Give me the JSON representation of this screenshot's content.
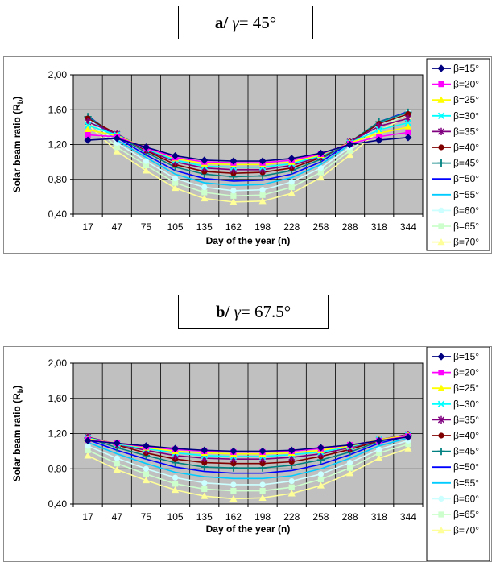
{
  "panels": [
    {
      "letter": "a",
      "slash": "/",
      "gamma_symbol": "γ",
      "equals": "=",
      "gamma_value": "45°"
    },
    {
      "letter": "b",
      "slash": "/",
      "gamma_symbol": "γ",
      "equals": "=",
      "gamma_value": "67.5°"
    }
  ],
  "chart_data": [
    {
      "type": "line",
      "title": "a/ γ = 45°",
      "xlabel": "Day of the year (n)",
      "ylabel": "Solar beam ratio (R",
      "ylabel_sub": "b",
      "ylabel_close": ")",
      "ylim": [
        0.4,
        2.0
      ],
      "yticks": [
        "2,00",
        "1,60",
        "1,20",
        "0,80",
        "0,40"
      ],
      "categories": [
        "17",
        "47",
        "75",
        "105",
        "135",
        "162",
        "198",
        "228",
        "258",
        "288",
        "318",
        "344"
      ],
      "grid": true,
      "legend_position": "right",
      "series": [
        {
          "name": "β=15°",
          "color": "#000080",
          "marker": "diamond",
          "values": [
            1.25,
            1.27,
            1.17,
            1.07,
            1.02,
            1.01,
            1.01,
            1.04,
            1.1,
            1.2,
            1.25,
            1.28
          ]
        },
        {
          "name": "β=20°",
          "color": "#ff00ff",
          "marker": "square",
          "values": [
            1.31,
            1.29,
            1.16,
            1.05,
            1.0,
            0.99,
            0.99,
            1.02,
            1.09,
            1.21,
            1.29,
            1.34
          ]
        },
        {
          "name": "β=25°",
          "color": "#ffff00",
          "marker": "triangle",
          "values": [
            1.37,
            1.3,
            1.16,
            1.04,
            0.98,
            0.97,
            0.97,
            1.0,
            1.08,
            1.22,
            1.33,
            1.4
          ]
        },
        {
          "name": "β=30°",
          "color": "#00ffff",
          "marker": "x",
          "values": [
            1.42,
            1.31,
            1.15,
            1.02,
            0.95,
            0.94,
            0.94,
            0.98,
            1.07,
            1.22,
            1.37,
            1.45
          ]
        },
        {
          "name": "β=35°",
          "color": "#800080",
          "marker": "star",
          "values": [
            1.46,
            1.32,
            1.14,
            1.0,
            0.93,
            0.91,
            0.91,
            0.96,
            1.06,
            1.23,
            1.41,
            1.5
          ]
        },
        {
          "name": "β=40°",
          "color": "#800000",
          "marker": "circle",
          "values": [
            1.5,
            1.32,
            1.13,
            0.97,
            0.89,
            0.87,
            0.88,
            0.93,
            1.05,
            1.23,
            1.44,
            1.55
          ]
        },
        {
          "name": "β=45°",
          "color": "#008080",
          "marker": "plus",
          "values": [
            1.52,
            1.3,
            1.11,
            0.94,
            0.86,
            0.83,
            0.84,
            0.9,
            1.03,
            1.23,
            1.46,
            1.57
          ]
        },
        {
          "name": "β=50°",
          "color": "#0000ff",
          "marker": "none",
          "values": [
            1.53,
            1.28,
            1.08,
            0.9,
            0.81,
            0.78,
            0.79,
            0.86,
            1.0,
            1.22,
            1.46,
            1.58
          ]
        },
        {
          "name": "β=55°",
          "color": "#00ccff",
          "marker": "none",
          "values": [
            1.52,
            1.25,
            1.05,
            0.86,
            0.76,
            0.73,
            0.74,
            0.82,
            0.97,
            1.2,
            1.45,
            1.58
          ]
        },
        {
          "name": "β=60°",
          "color": "#ccffff",
          "marker": "circle",
          "values": [
            1.5,
            1.22,
            1.01,
            0.81,
            0.71,
            0.67,
            0.68,
            0.77,
            0.93,
            1.17,
            1.43,
            1.57
          ]
        },
        {
          "name": "β=65°",
          "color": "#ccffcc",
          "marker": "square",
          "values": [
            1.47,
            1.17,
            0.96,
            0.76,
            0.65,
            0.61,
            0.62,
            0.71,
            0.88,
            1.13,
            1.4,
            1.55
          ]
        },
        {
          "name": "β=70°",
          "color": "#ffff99",
          "marker": "triangle",
          "values": [
            1.43,
            1.12,
            0.9,
            0.7,
            0.58,
            0.54,
            0.55,
            0.64,
            0.82,
            1.08,
            1.36,
            1.52
          ]
        }
      ]
    },
    {
      "type": "line",
      "title": "b/ γ = 67.5°",
      "xlabel": "Day of the year (n)",
      "ylabel": "Solar beam ratio (R",
      "ylabel_sub": "b",
      "ylabel_close": ")",
      "ylim": [
        0.4,
        2.0
      ],
      "yticks": [
        "2,00",
        "1,60",
        "1,20",
        "0,80",
        "0,40"
      ],
      "categories": [
        "17",
        "47",
        "75",
        "105",
        "135",
        "162",
        "198",
        "228",
        "258",
        "288",
        "318",
        "344"
      ],
      "grid": true,
      "legend_position": "right",
      "series": [
        {
          "name": "β=15°",
          "color": "#000080",
          "marker": "diamond",
          "values": [
            1.12,
            1.09,
            1.06,
            1.03,
            1.01,
            1.0,
            1.0,
            1.01,
            1.04,
            1.07,
            1.12,
            1.16
          ]
        },
        {
          "name": "β=20°",
          "color": "#ff00ff",
          "marker": "square",
          "values": [
            1.13,
            1.09,
            1.05,
            1.02,
            1.0,
            0.99,
            0.99,
            1.0,
            1.03,
            1.07,
            1.12,
            1.17
          ]
        },
        {
          "name": "β=25°",
          "color": "#ffff00",
          "marker": "triangle",
          "values": [
            1.14,
            1.09,
            1.04,
            1.0,
            0.98,
            0.97,
            0.97,
            0.98,
            1.01,
            1.06,
            1.13,
            1.18
          ]
        },
        {
          "name": "β=30°",
          "color": "#00ffff",
          "marker": "x",
          "values": [
            1.15,
            1.08,
            1.03,
            0.98,
            0.95,
            0.94,
            0.94,
            0.96,
            0.99,
            1.05,
            1.13,
            1.18
          ]
        },
        {
          "name": "β=35°",
          "color": "#800080",
          "marker": "star",
          "values": [
            1.16,
            1.08,
            1.01,
            0.95,
            0.92,
            0.91,
            0.91,
            0.93,
            0.97,
            1.04,
            1.13,
            1.19
          ]
        },
        {
          "name": "β=40°",
          "color": "#800000",
          "marker": "circle",
          "values": [
            1.16,
            1.07,
            0.98,
            0.91,
            0.87,
            0.86,
            0.86,
            0.88,
            0.94,
            1.02,
            1.12,
            1.19
          ]
        },
        {
          "name": "β=45°",
          "color": "#008080",
          "marker": "plus",
          "values": [
            1.15,
            1.04,
            0.95,
            0.87,
            0.82,
            0.81,
            0.81,
            0.84,
            0.9,
            0.99,
            1.11,
            1.18
          ]
        },
        {
          "name": "β=50°",
          "color": "#0000ff",
          "marker": "none",
          "values": [
            1.13,
            1.01,
            0.91,
            0.82,
            0.77,
            0.75,
            0.75,
            0.78,
            0.85,
            0.96,
            1.09,
            1.17
          ]
        },
        {
          "name": "β=55°",
          "color": "#00ccff",
          "marker": "none",
          "values": [
            1.1,
            0.97,
            0.86,
            0.76,
            0.71,
            0.69,
            0.69,
            0.72,
            0.8,
            0.92,
            1.06,
            1.15
          ]
        },
        {
          "name": "β=60°",
          "color": "#ccffff",
          "marker": "circle",
          "values": [
            1.06,
            0.92,
            0.8,
            0.7,
            0.64,
            0.62,
            0.62,
            0.66,
            0.74,
            0.87,
            1.02,
            1.12
          ]
        },
        {
          "name": "β=65°",
          "color": "#ccffcc",
          "marker": "square",
          "values": [
            1.01,
            0.86,
            0.74,
            0.63,
            0.57,
            0.55,
            0.55,
            0.59,
            0.68,
            0.81,
            0.98,
            1.08
          ]
        },
        {
          "name": "β=70°",
          "color": "#ffff99",
          "marker": "triangle",
          "values": [
            0.95,
            0.79,
            0.67,
            0.56,
            0.49,
            0.46,
            0.47,
            0.52,
            0.61,
            0.75,
            0.92,
            1.03
          ]
        }
      ]
    }
  ]
}
